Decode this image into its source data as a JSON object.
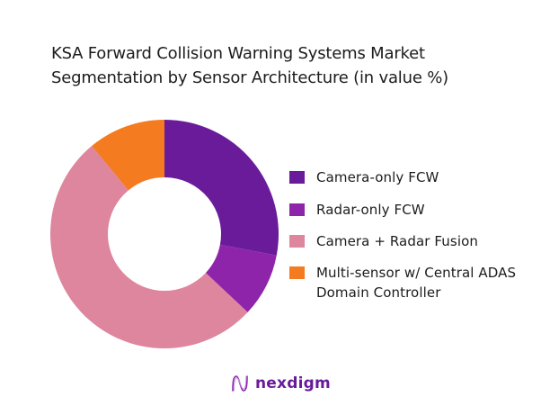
{
  "chart_data": {
    "type": "pie",
    "variant": "donut",
    "title": "KSA Forward Collision Warning Systems Market Segmentation by Sensor Architecture (in value %)",
    "title_lines": [
      "KSA Forward Collision Warning Systems Market",
      "Segmentation by Sensor Architecture (in value %)"
    ],
    "categories": [
      "Camera-only FCW",
      "Radar-only FCW",
      "Camera + Radar Fusion",
      "Multi-sensor w/ Central ADAS Domain Controller"
    ],
    "values": [
      28,
      9,
      52,
      11
    ],
    "colors": [
      "#6a1b9a",
      "#8e24aa",
      "#de869e",
      "#f47b20"
    ],
    "start_angle_deg": 0,
    "direction": "clockwise",
    "legend_position": "right",
    "data_labels": false
  },
  "legend": {
    "items": [
      {
        "label": "Camera-only FCW",
        "color": "#6a1b9a"
      },
      {
        "label": "Radar-only FCW",
        "color": "#8e24aa"
      },
      {
        "label": "Camera + Radar Fusion",
        "color": "#de869e"
      },
      {
        "label": "Multi-sensor w/ Central ADAS Domain Controller",
        "color": "#f47b20"
      }
    ]
  },
  "brand": {
    "logo_text": "nexdigm",
    "logo_icon": "nexdigm-wave-icon",
    "color": "#6a1b9a"
  }
}
